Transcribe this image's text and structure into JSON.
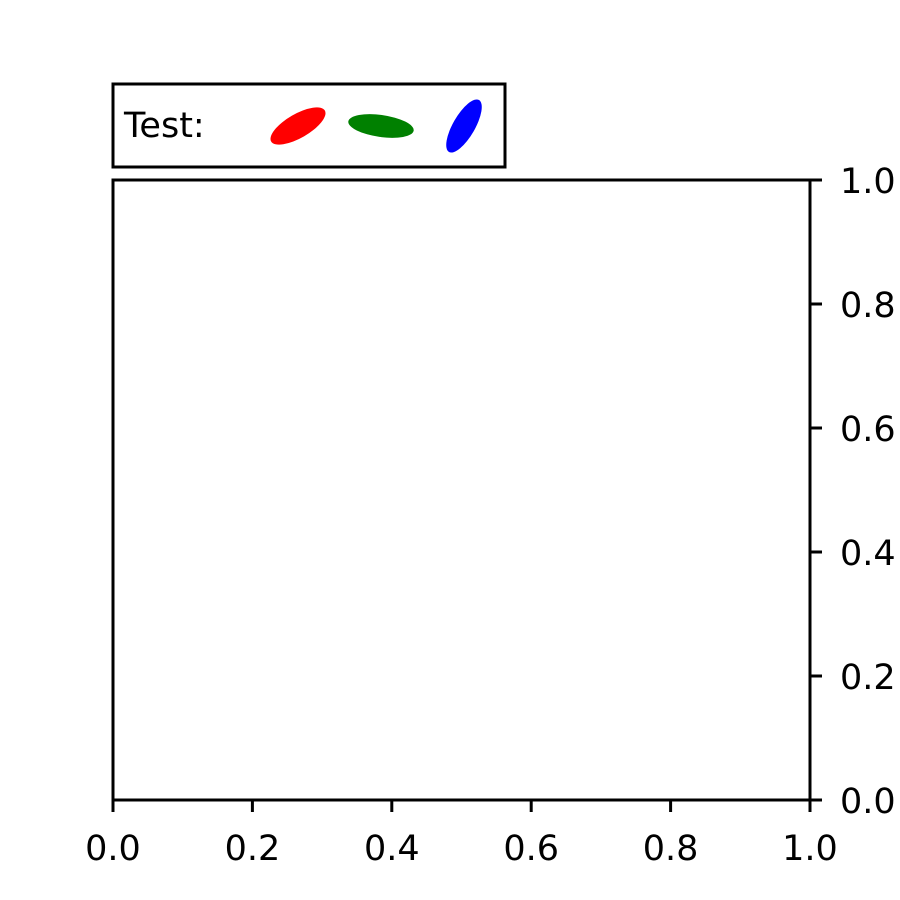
{
  "chart_data": {
    "type": "scatter",
    "title": "",
    "xlabel": "",
    "ylabel": "",
    "xlim": [
      0.0,
      1.0
    ],
    "ylim": [
      0.0,
      1.0
    ],
    "x_ticks": [
      "0.0",
      "0.2",
      "0.4",
      "0.6",
      "0.8",
      "1.0"
    ],
    "y_ticks": [
      "0.0",
      "0.2",
      "0.4",
      "0.6",
      "0.8",
      "1.0"
    ],
    "y_axis_side": "right",
    "grid": false,
    "series": [],
    "legend": {
      "placement": "above-left",
      "label": "Test:",
      "markers": [
        {
          "shape": "ellipse",
          "color": "#ff0000",
          "orientation": "tilted-up-right"
        },
        {
          "shape": "ellipse",
          "color": "#008000",
          "orientation": "near-horizontal"
        },
        {
          "shape": "ellipse",
          "color": "#0000ff",
          "orientation": "steep-up-right"
        }
      ]
    }
  }
}
